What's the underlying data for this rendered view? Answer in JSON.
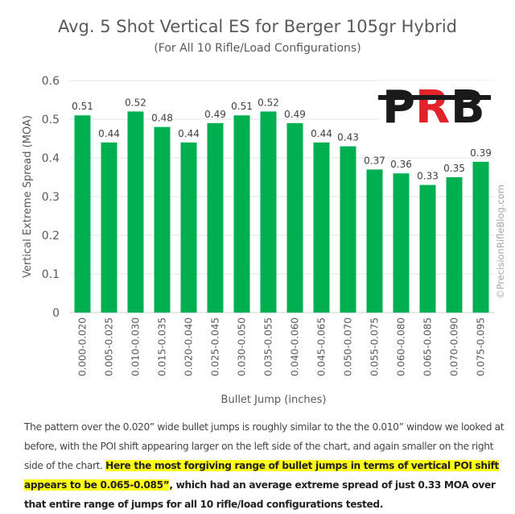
{
  "chart_data": {
    "type": "bar",
    "title": "Avg. 5 Shot Vertical ES for Berger 105gr Hybrid",
    "subtitle": "(For All 10 Rifle/Load Configurations)",
    "xlabel": "Bullet Jump (inches)",
    "ylabel": "Vertical Extreme Spread (MOA)",
    "ylim": [
      0,
      0.6
    ],
    "yticks": [
      "0",
      "0.1",
      "0.2",
      "0.3",
      "0.4",
      "0.5",
      "0.6"
    ],
    "grid": true,
    "categories": [
      "0.000-0.020",
      "0.005-0.025",
      "0.010-0.030",
      "0.015-0.035",
      "0.020-0.040",
      "0.025-0.045",
      "0.030-0.050",
      "0.035-0.055",
      "0.040-0.060",
      "0.045-0.065",
      "0.050-0.070",
      "0.055-0.075",
      "0.060-0.080",
      "0.065-0.085",
      "0.070-0.090",
      "0.075-0.095"
    ],
    "values": [
      0.51,
      0.44,
      0.52,
      0.48,
      0.44,
      0.49,
      0.51,
      0.52,
      0.49,
      0.44,
      0.43,
      0.37,
      0.36,
      0.33,
      0.35,
      0.39
    ],
    "labels": [
      "0.51",
      "0.44",
      "0.52",
      "0.48",
      "0.44",
      "0.49",
      "0.51",
      "0.52",
      "0.49",
      "0.44",
      "0.43",
      "0.37",
      "0.36",
      "0.33",
      "0.35",
      "0.39"
    ],
    "bar_color": "#00b050",
    "watermark": "©PrecisionRifleBlog.com",
    "logo": "PRB"
  },
  "text": {
    "p1": "The pattern over the 0.020” wide bullet jumps is roughly similar to the the 0.010” window we looked at before, with the POI shift appearing larger on the left side of the chart, and again smaller on the right side of the chart. ",
    "p2": "Here the most forgiving range of bullet jumps in terms of vertical POI shift appears to be 0.065-0.085”",
    "p3": ", which had an average extreme spread of just 0.33 MOA over that entire range of jumps for all 10 rifle/load configurations tested."
  }
}
